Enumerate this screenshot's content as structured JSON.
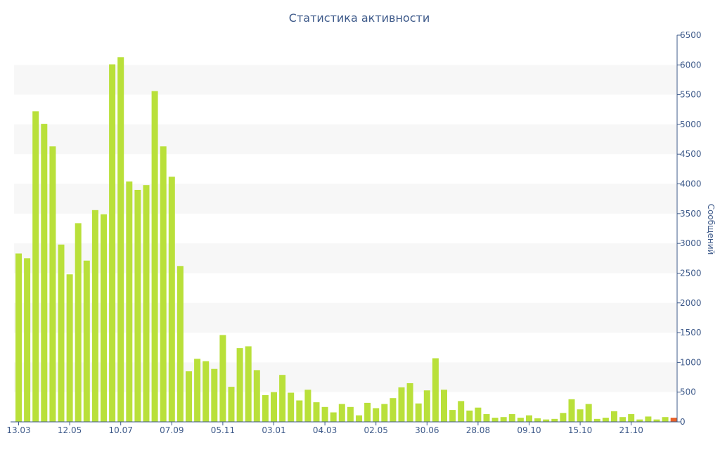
{
  "chart_data": {
    "type": "bar",
    "title": "Статистика активности",
    "xlabel": "",
    "ylabel": "Сообщений",
    "y_axis_side": "right",
    "ylim": [
      0,
      6500
    ],
    "y_ticks": [
      0,
      500,
      1000,
      1500,
      2000,
      2500,
      3000,
      3500,
      4000,
      4500,
      5000,
      5500,
      6000,
      6500
    ],
    "x_tick_labels": [
      {
        "label": "13.03",
        "index": 0
      },
      {
        "label": "12.05",
        "index": 6
      },
      {
        "label": "10.07",
        "index": 12
      },
      {
        "label": "07.09",
        "index": 18
      },
      {
        "label": "05.11",
        "index": 24
      },
      {
        "label": "03.01",
        "index": 30
      },
      {
        "label": "04.03",
        "index": 36
      },
      {
        "label": "02.05",
        "index": 42
      },
      {
        "label": "30.06",
        "index": 48
      },
      {
        "label": "28.08",
        "index": 54
      },
      {
        "label": "09.10",
        "index": 60
      },
      {
        "label": "15.10",
        "index": 66
      },
      {
        "label": "21.10",
        "index": 72
      }
    ],
    "grid": "alternating horizontal bands",
    "colors": {
      "bar": "#b9e03a",
      "highlight": "#e8622a",
      "band": "#f7f7f7",
      "axis": "#3e5a8a"
    },
    "values": [
      2830,
      2750,
      5220,
      5010,
      4630,
      2980,
      2480,
      3340,
      2710,
      3560,
      3490,
      6010,
      6130,
      4040,
      3900,
      3980,
      5560,
      4630,
      4120,
      2620,
      850,
      1060,
      1020,
      890,
      1460,
      590,
      1240,
      1270,
      870,
      450,
      500,
      790,
      490,
      360,
      540,
      330,
      250,
      160,
      300,
      250,
      110,
      320,
      230,
      300,
      400,
      580,
      650,
      310,
      530,
      1070,
      540,
      200,
      350,
      190,
      240,
      130,
      70,
      80,
      130,
      70,
      110,
      60,
      40,
      50,
      150,
      380,
      210,
      300,
      50,
      70,
      180,
      80,
      130,
      40,
      90,
      40,
      80,
      70
    ],
    "highlight_index": 77
  }
}
